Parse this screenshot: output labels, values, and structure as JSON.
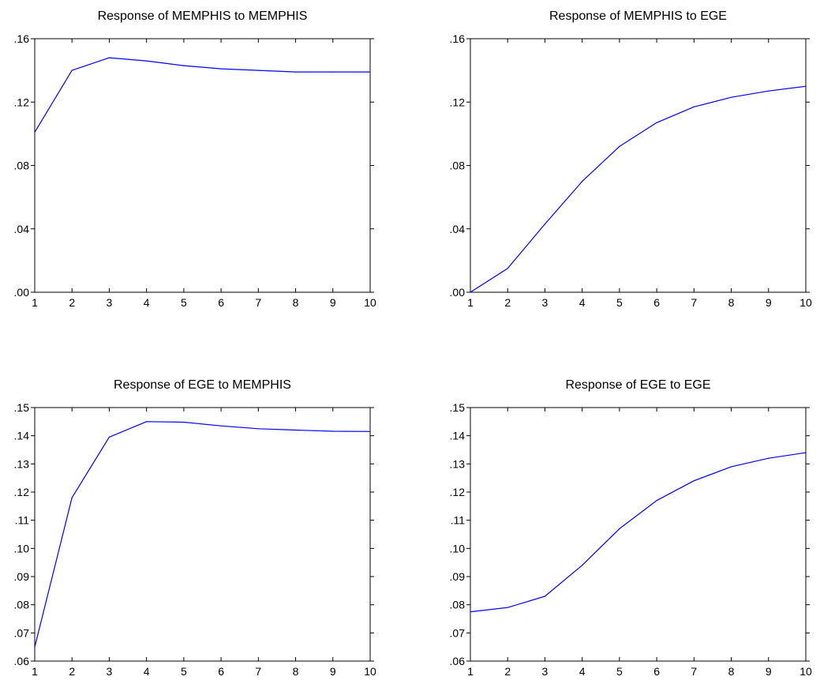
{
  "chart_data": [
    {
      "type": "line",
      "title": "Response of MEMPHIS to MEMPHIS",
      "x": [
        1,
        2,
        3,
        4,
        5,
        6,
        7,
        8,
        9,
        10
      ],
      "x_tick_labels": [
        "1",
        "2",
        "3",
        "4",
        "5",
        "6",
        "7",
        "8",
        "9",
        "10"
      ],
      "xlim": [
        1,
        10
      ],
      "ylim": [
        0.0,
        0.16
      ],
      "y_ticks": [
        0.0,
        0.04,
        0.08,
        0.12,
        0.16
      ],
      "y_tick_labels": [
        ".00",
        ".04",
        ".08",
        ".12",
        ".16"
      ],
      "series": [
        {
          "values": [
            0.101,
            0.14,
            0.148,
            0.146,
            0.143,
            0.141,
            0.14,
            0.139,
            0.139,
            0.139
          ]
        }
      ],
      "line_color": "#0000ff",
      "grid": false
    },
    {
      "type": "line",
      "title": "Response of MEMPHIS to EGE",
      "x": [
        1,
        2,
        3,
        4,
        5,
        6,
        7,
        8,
        9,
        10
      ],
      "x_tick_labels": [
        "1",
        "2",
        "3",
        "4",
        "5",
        "6",
        "7",
        "8",
        "9",
        "10"
      ],
      "xlim": [
        1,
        10
      ],
      "ylim": [
        0.0,
        0.16
      ],
      "y_ticks": [
        0.0,
        0.04,
        0.08,
        0.12,
        0.16
      ],
      "y_tick_labels": [
        ".00",
        ".04",
        ".08",
        ".12",
        ".16"
      ],
      "series": [
        {
          "values": [
            0.0,
            0.015,
            0.043,
            0.07,
            0.092,
            0.107,
            0.117,
            0.123,
            0.127,
            0.13
          ]
        }
      ],
      "line_color": "#0000ff",
      "grid": false
    },
    {
      "type": "line",
      "title": "Response of EGE to MEMPHIS",
      "x": [
        1,
        2,
        3,
        4,
        5,
        6,
        7,
        8,
        9,
        10
      ],
      "x_tick_labels": [
        "1",
        "2",
        "3",
        "4",
        "5",
        "6",
        "7",
        "8",
        "9",
        "10"
      ],
      "xlim": [
        1,
        10
      ],
      "ylim": [
        0.06,
        0.15
      ],
      "y_ticks": [
        0.06,
        0.07,
        0.08,
        0.09,
        0.1,
        0.11,
        0.12,
        0.13,
        0.14,
        0.15
      ],
      "y_tick_labels": [
        ".06",
        ".07",
        ".08",
        ".09",
        ".10",
        ".11",
        ".12",
        ".13",
        ".14",
        ".15"
      ],
      "series": [
        {
          "values": [
            0.065,
            0.118,
            0.1395,
            0.145,
            0.1448,
            0.1435,
            0.1425,
            0.142,
            0.1416,
            0.1415
          ]
        }
      ],
      "line_color": "#0000ff",
      "grid": false
    },
    {
      "type": "line",
      "title": "Response of EGE to EGE",
      "x": [
        1,
        2,
        3,
        4,
        5,
        6,
        7,
        8,
        9,
        10
      ],
      "x_tick_labels": [
        "1",
        "2",
        "3",
        "4",
        "5",
        "6",
        "7",
        "8",
        "9",
        "10"
      ],
      "xlim": [
        1,
        10
      ],
      "ylim": [
        0.06,
        0.15
      ],
      "y_ticks": [
        0.06,
        0.07,
        0.08,
        0.09,
        0.1,
        0.11,
        0.12,
        0.13,
        0.14,
        0.15
      ],
      "y_tick_labels": [
        ".06",
        ".07",
        ".08",
        ".09",
        ".10",
        ".11",
        ".12",
        ".13",
        ".14",
        ".15"
      ],
      "series": [
        {
          "values": [
            0.0775,
            0.079,
            0.083,
            0.094,
            0.107,
            0.117,
            0.124,
            0.129,
            0.132,
            0.134
          ]
        }
      ],
      "line_color": "#0000ff",
      "grid": false
    }
  ]
}
